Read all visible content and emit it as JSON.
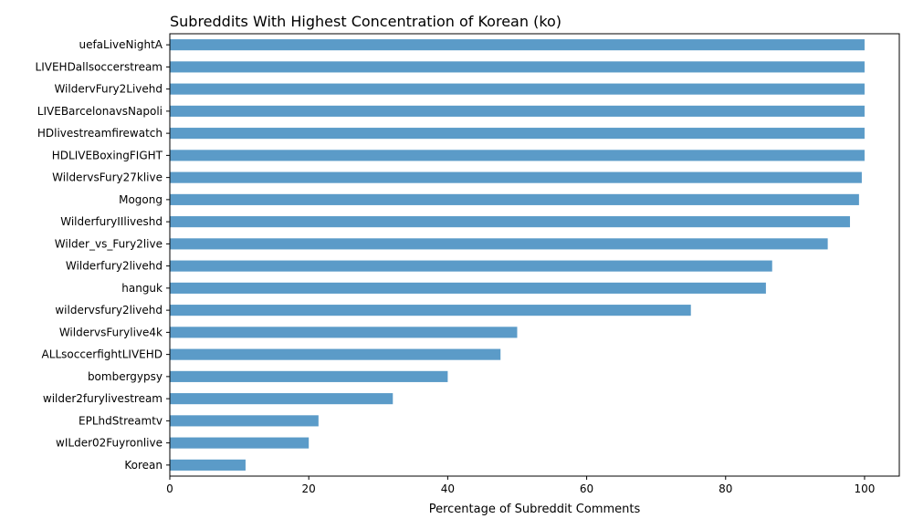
{
  "chart_data": {
    "type": "bar",
    "orientation": "horizontal",
    "title": "Subreddits With Highest Concentration of Korean (ko)",
    "xlabel": "Percentage of Subreddit Comments",
    "ylabel": "",
    "xlim": [
      0,
      105
    ],
    "xticks": [
      0,
      20,
      40,
      60,
      80,
      100
    ],
    "grid": false,
    "bar_color": "#5b9bc8",
    "categories": [
      "uefaLiveNightA",
      "LIVEHDallsoccerstream",
      "WildervFury2Livehd",
      "LIVEBarcelonavsNapoli",
      "HDlivestreamfirewatch",
      "HDLIVEBoxingFIGHT",
      "WildervsFury27klive",
      "Mogong",
      "WilderfuryIIliveshd",
      "Wilder_vs_Fury2live",
      "Wilderfury2livehd",
      "hanguk",
      "wildervsfury2livehd",
      "WildervsFurylive4k",
      "ALLsoccerfightLIVEHD",
      "bombergypsy",
      "wilder2furylivestream",
      "EPLhdStreamtv",
      "wILder02Fuyronlive",
      "Korean"
    ],
    "values": [
      100,
      100,
      100,
      100,
      100,
      100,
      99.6,
      99.2,
      97.9,
      94.7,
      86.7,
      85.8,
      75.0,
      50.0,
      47.6,
      40.0,
      32.1,
      21.4,
      20.0,
      10.9
    ]
  }
}
